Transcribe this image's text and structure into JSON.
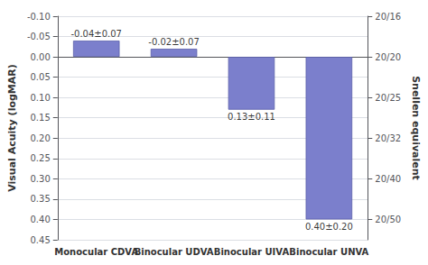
{
  "chart_data": {
    "type": "bar",
    "categories": [
      "Monocular CDVA",
      "Binocular UDVA",
      "Binocular UIVA",
      "Binocular UNVA"
    ],
    "values": [
      -0.04,
      -0.02,
      0.13,
      0.4
    ],
    "annotations": [
      "-0.04±0.07",
      "-0.02±0.07",
      "0.13±0.11",
      "0.40±0.20"
    ],
    "color": "#7b7fcc",
    "ylabel": "Visual Acuity (logMAR)",
    "y2label": "Snellen equivalent",
    "ylim": [
      0.45,
      -0.1
    ],
    "yticks": [
      {
        "value": -0.1,
        "label": "-0.10"
      },
      -0.05,
      {
        "value": 0.0,
        "label": "0.00"
      },
      0.05,
      {
        "value": 0.1,
        "label": "0.10"
      },
      0.15,
      {
        "value": 0.2,
        "label": "0.20"
      },
      0.25,
      {
        "value": 0.3,
        "label": "0.30"
      },
      0.35,
      {
        "value": 0.4,
        "label": "0.40"
      },
      0.45
    ],
    "y2lim": [
      0.45,
      -0.1
    ],
    "y2ticks": [
      {
        "value": -0.1,
        "label": "20/16"
      },
      {
        "value": 0.0,
        "label": "20/20"
      },
      {
        "value": 0.1,
        "label": "20/25"
      },
      {
        "value": 0.2,
        "label": "20/32"
      },
      {
        "value": 0.3,
        "label": "20/40"
      },
      {
        "value": 0.4,
        "label": "20/50"
      }
    ],
    "grid": true
  }
}
